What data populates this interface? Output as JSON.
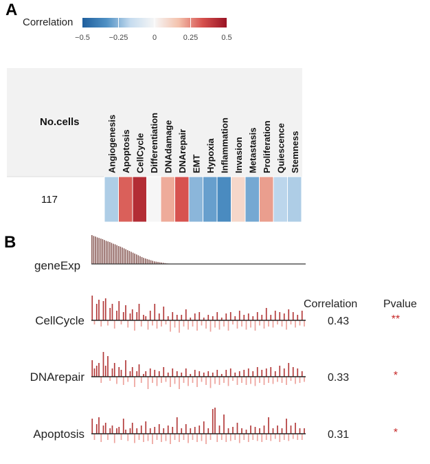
{
  "panelA": {
    "label": "A",
    "legend": {
      "title": "Correlation",
      "ticks": [
        "−0.5",
        "−0.25",
        "0",
        "0.25",
        "0.5"
      ],
      "range": [
        -0.5,
        0.5
      ],
      "colors": [
        "#1f5f9d",
        "#4f90c4",
        "#c6dcef",
        "#f6f6f6",
        "#f4c2ad",
        "#d6504d",
        "#991324"
      ]
    },
    "row_header": "No.cells",
    "cell_count": "117"
  },
  "panelB": {
    "label": "B",
    "expr_label": "geneExp",
    "correlation_header": "Correlation",
    "pvalue_header": "Pvalue",
    "accent_color": "#c62828",
    "bar_color_dark": "#b23a3a",
    "bar_color_light": "#eda29c",
    "expr_bar_color": "#8a5c58",
    "tracks": [
      {
        "name": "CellCycle",
        "correlation": "0.43",
        "pvalue": "**",
        "highlight": false
      },
      {
        "name": "DNArepair",
        "correlation": "0.33",
        "pvalue": "*",
        "highlight": true
      },
      {
        "name": "Apoptosis",
        "correlation": "0.31",
        "pvalue": "*",
        "highlight": false
      }
    ]
  },
  "chart_data": [
    {
      "type": "heatmap",
      "title": "Correlation",
      "row_label": "No.cells",
      "rows": [
        "117"
      ],
      "columns": [
        "Angiogenesis",
        "Apoptosis",
        "CellCycle",
        "Differentiation",
        "DNAdamage",
        "DNArepair",
        "EMT",
        "Hypoxia",
        "Inflammation",
        "Invasion",
        "Metastasis",
        "Proliferation",
        "Quiescence",
        "Stemness"
      ],
      "values": [
        [
          -0.2,
          0.31,
          0.43,
          0.0,
          0.2,
          0.33,
          -0.25,
          -0.3,
          -0.35,
          0.1,
          -0.28,
          0.22,
          -0.18,
          -0.2
        ]
      ],
      "color_range": [
        -0.5,
        0.5
      ]
    },
    {
      "type": "bar",
      "title": "geneExp",
      "values": [
        1.0,
        0.97,
        0.95,
        0.92,
        0.9,
        0.88,
        0.86,
        0.83,
        0.8,
        0.78,
        0.76,
        0.73,
        0.7,
        0.68,
        0.65,
        0.62,
        0.6,
        0.57,
        0.54,
        0.51,
        0.48,
        0.45,
        0.42,
        0.39,
        0.36,
        0.33,
        0.3,
        0.27,
        0.24,
        0.21,
        0.19,
        0.17,
        0.15,
        0.13,
        0.11,
        0.09,
        0.08,
        0.07,
        0.06,
        0.05,
        0.04,
        0.03,
        0.02,
        0.015,
        0.01,
        0.005
      ]
    },
    {
      "type": "bar",
      "title": "CellCycle",
      "values": [
        0.9,
        -0.2,
        0.6,
        0.75,
        -0.3,
        0.7,
        0.8,
        -0.25,
        0.45,
        0.6,
        -0.4,
        0.35,
        0.7,
        -0.2,
        0.3,
        0.55,
        -0.35,
        0.25,
        0.4,
        -0.5,
        0.3,
        0.6,
        -0.3,
        0.2,
        0.15,
        -0.45,
        0.35,
        -0.25,
        0.6,
        -0.4,
        0.25,
        -0.3,
        0.5,
        -0.2,
        0.15,
        -0.55,
        0.3,
        -0.35,
        0.2,
        -0.6,
        0.2,
        -0.3,
        0.4,
        -0.45,
        0.1,
        -0.3,
        0.25,
        -0.5,
        0.3,
        -0.25,
        0.1,
        -0.4,
        0.2,
        -0.55,
        0.15,
        -0.35,
        0.3,
        -0.45,
        0.1,
        -0.3,
        0.25,
        -0.5,
        0.3,
        -0.2,
        0.15,
        -0.4,
        0.35,
        -0.3,
        0.2,
        -0.45,
        0.25,
        -0.35,
        0.15,
        -0.5,
        0.3,
        -0.25,
        0.2,
        -0.4,
        0.45,
        -0.3,
        0.2,
        -0.35,
        0.35,
        -0.2,
        0.3,
        -0.3,
        0.25,
        -0.45,
        0.4,
        -0.2,
        0.3,
        -0.35,
        0.2,
        -0.25,
        0.35,
        -0.3
      ]
    },
    {
      "type": "bar",
      "title": "DNArepair",
      "values": [
        0.6,
        0.3,
        0.4,
        0.5,
        -0.3,
        0.9,
        0.4,
        0.75,
        -0.2,
        0.3,
        0.5,
        -0.35,
        0.35,
        0.25,
        -0.4,
        0.6,
        -0.25,
        0.2,
        0.35,
        -0.5,
        0.2,
        0.45,
        -0.3,
        0.1,
        0.2,
        -0.6,
        0.3,
        -0.3,
        0.25,
        -0.45,
        0.2,
        -0.3,
        0.35,
        -0.25,
        0.15,
        -0.5,
        0.3,
        -0.35,
        0.2,
        -0.6,
        0.15,
        -0.3,
        0.3,
        -0.45,
        0.1,
        -0.3,
        0.25,
        -0.5,
        0.2,
        -0.25,
        0.15,
        -0.4,
        0.2,
        -0.55,
        0.15,
        -0.35,
        0.25,
        -0.4,
        0.1,
        -0.3,
        0.25,
        -0.45,
        0.3,
        -0.2,
        0.15,
        -0.4,
        0.2,
        -0.3,
        0.25,
        -0.4,
        0.3,
        -0.35,
        0.2,
        -0.45,
        0.35,
        -0.3,
        0.25,
        -0.4,
        0.3,
        -0.3,
        0.35,
        -0.35,
        0.2,
        -0.25,
        0.4,
        -0.3,
        0.3,
        -0.4,
        0.5,
        -0.2,
        0.35,
        -0.35,
        0.3,
        -0.3,
        0.2,
        -0.25
      ]
    },
    {
      "type": "bar",
      "title": "Apoptosis",
      "values": [
        0.55,
        -0.3,
        0.35,
        0.6,
        -0.4,
        0.3,
        0.4,
        -0.3,
        0.2,
        0.3,
        -0.45,
        0.2,
        0.25,
        -0.3,
        0.55,
        0.15,
        -0.35,
        0.2,
        0.4,
        -0.45,
        0.2,
        -0.3,
        0.3,
        -0.4,
        0.45,
        -0.35,
        0.2,
        -0.5,
        0.25,
        -0.3,
        0.35,
        -0.4,
        0.2,
        -0.35,
        0.3,
        -0.5,
        0.25,
        -0.3,
        0.6,
        -0.4,
        0.2,
        -0.3,
        0.35,
        -0.45,
        0.2,
        -0.3,
        0.25,
        -0.4,
        0.3,
        -0.35,
        0.45,
        -0.5,
        0.2,
        -0.3,
        0.9,
        0.95,
        -0.4,
        0.3,
        -0.3,
        0.7,
        -0.4,
        0.2,
        -0.35,
        0.25,
        -0.3,
        0.4,
        -0.45,
        0.2,
        -0.3,
        0.15,
        -0.4,
        0.3,
        -0.3,
        0.25,
        -0.35,
        0.2,
        -0.4,
        0.3,
        -0.3,
        0.6,
        -0.35,
        0.2,
        -0.25,
        0.3,
        -0.4,
        0.2,
        -0.3,
        0.55,
        -0.35,
        0.3,
        -0.25,
        0.4,
        -0.3,
        0.2,
        -0.3,
        0.2
      ]
    }
  ]
}
